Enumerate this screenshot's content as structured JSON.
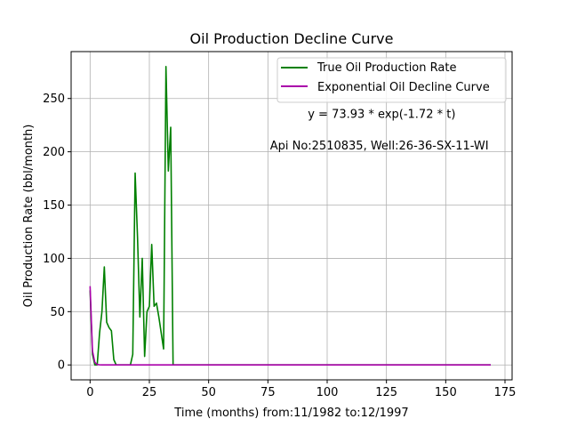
{
  "chart_data": {
    "type": "line",
    "title": "Oil Production Decline Curve",
    "xlabel": "Time (months) from:11/1982 to:12/1997",
    "ylabel": "Oil Production Rate (bbl/month)",
    "xlim": [
      -8,
      178
    ],
    "ylim": [
      -14,
      294
    ],
    "x_ticks": [
      0,
      25,
      50,
      75,
      100,
      125,
      150,
      175
    ],
    "y_ticks": [
      0,
      50,
      100,
      150,
      200,
      250
    ],
    "grid": true,
    "legend_placement": "top-right",
    "annotations": [
      {
        "text": "y = 73.93 * exp(-1.72 * t)",
        "x": 123,
        "y": 232
      },
      {
        "text": "Api No:2510835, Well:26-36-SX-11-WI",
        "x": 122,
        "y": 202
      }
    ],
    "series": [
      {
        "name": "True Oil Production Rate",
        "color": "#008000",
        "x": [
          0,
          1,
          2,
          3,
          4,
          5,
          6,
          7,
          8,
          9,
          10,
          11,
          12,
          13,
          14,
          15,
          16,
          17,
          18,
          19,
          20,
          21,
          22,
          23,
          24,
          25,
          26,
          27,
          28,
          29,
          30,
          31,
          32,
          33,
          34,
          35,
          36,
          169
        ],
        "y": [
          70,
          10,
          0,
          0,
          30,
          50,
          92,
          40,
          35,
          32,
          5,
          0,
          0,
          0,
          0,
          0,
          0,
          0,
          10,
          180,
          120,
          45,
          100,
          8,
          50,
          55,
          113,
          55,
          58,
          45,
          30,
          15,
          280,
          182,
          223,
          0,
          0,
          0
        ]
      },
      {
        "name": "Exponential Oil Decline Curve",
        "color": "#aa00aa",
        "x": [
          0,
          1,
          2,
          3,
          4,
          5,
          10,
          20,
          50,
          100,
          169
        ],
        "y": [
          73.93,
          13.2,
          2.4,
          0.42,
          0.08,
          0.01,
          0,
          0,
          0,
          0,
          0
        ]
      }
    ]
  }
}
